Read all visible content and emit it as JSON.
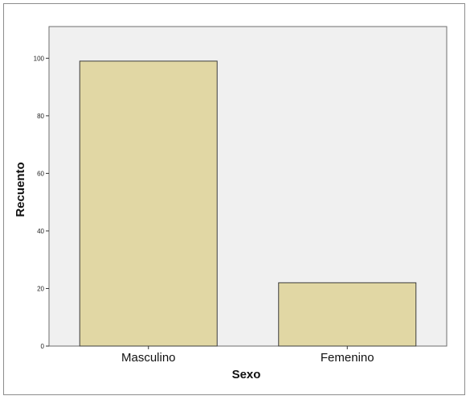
{
  "chart_data": {
    "type": "bar",
    "title": "",
    "xlabel": "Sexo",
    "ylabel": "Recuento",
    "categories": [
      "Masculino",
      "Femenino"
    ],
    "values": [
      99,
      22
    ],
    "ylim": [
      0,
      111
    ],
    "yticks": [
      0,
      20,
      40,
      60,
      80,
      100
    ],
    "grid": false,
    "legend": "none",
    "colors": {
      "bar_fill": "#e1d7a4",
      "bar_stroke": "#3c3c3c",
      "plot_background": "#f0f0f0"
    }
  }
}
